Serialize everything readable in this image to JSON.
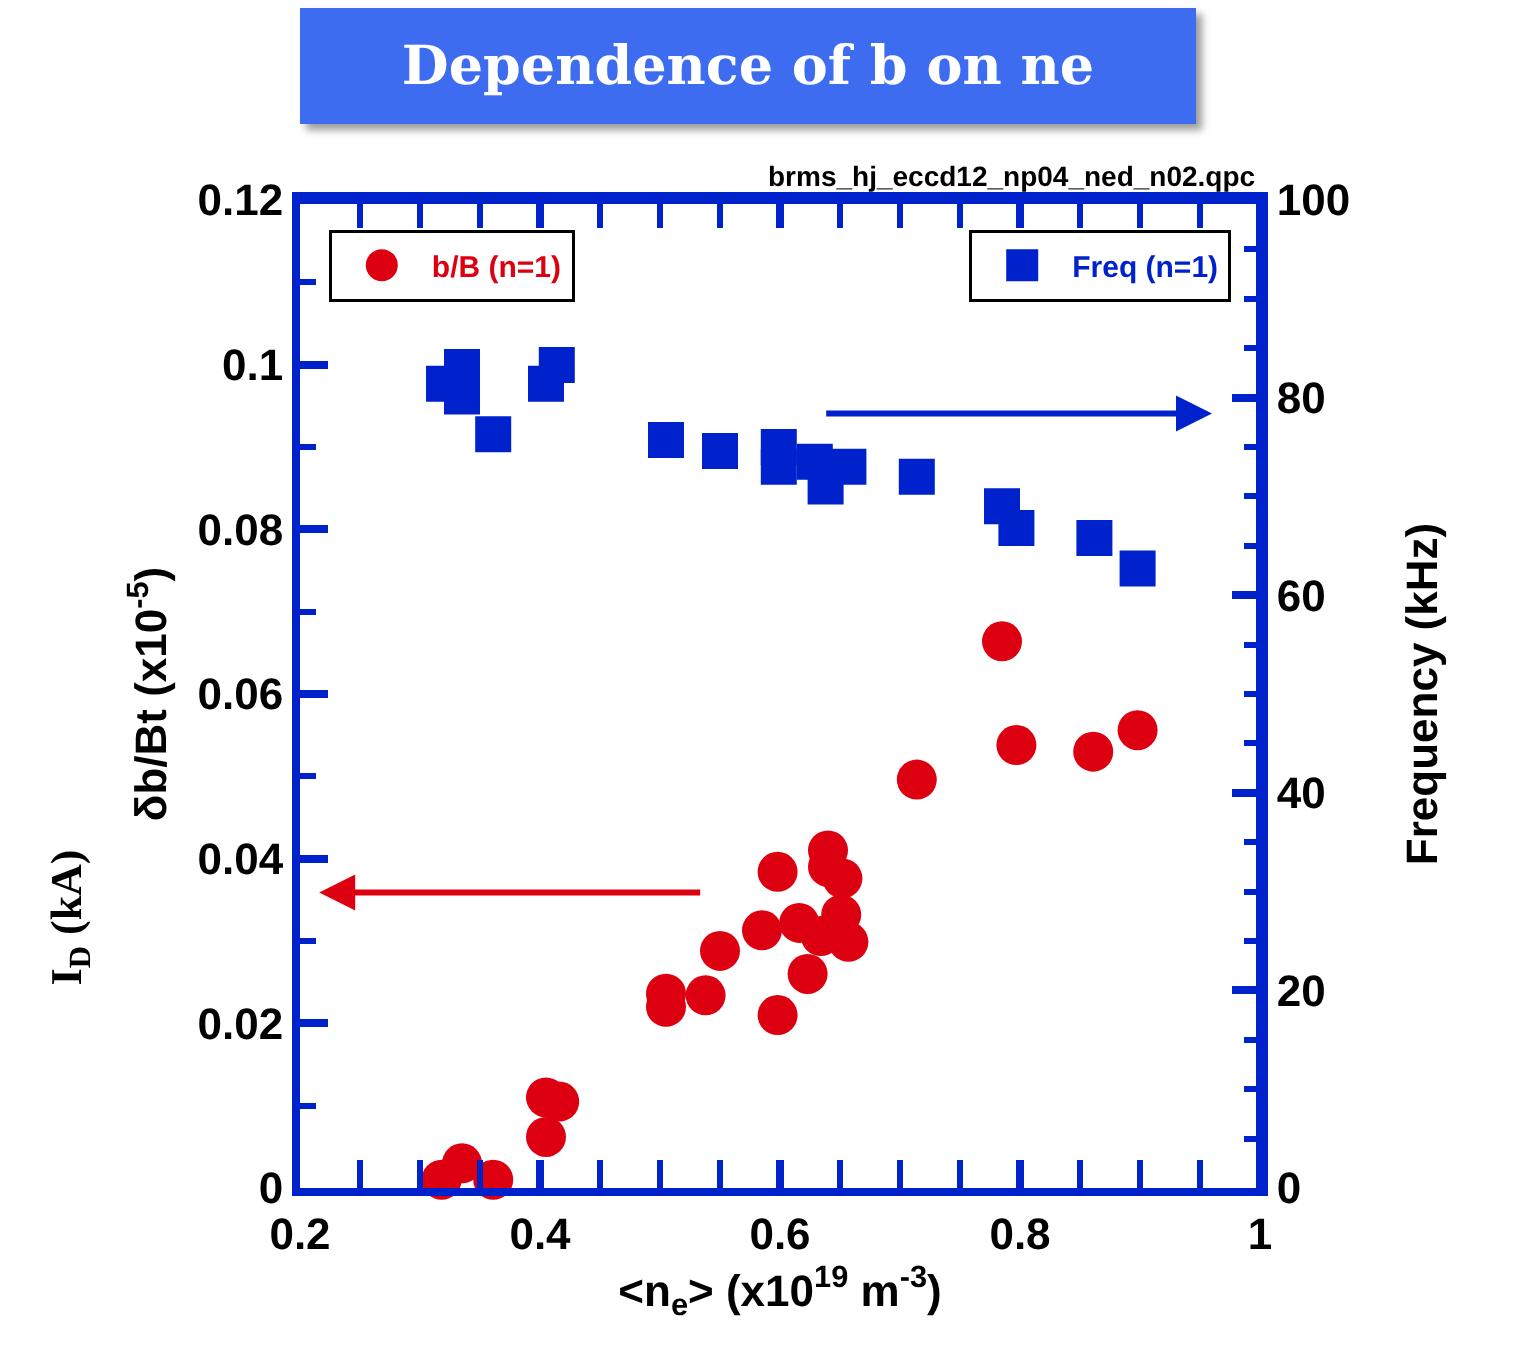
{
  "chart_data": {
    "type": "scatter",
    "title": "Dependence of b on ne",
    "xlabel": "<n$_{e}$> (x10$^{19}$ m$^{-3}$)",
    "ylabel": "δb/Bt (x10$^{-5}$)",
    "y2label": "Frequency (kHz)",
    "annotations": [
      "brms_hj_eccd12_np04_ned_n02.qpc",
      "I$_{D}$ (kA)"
    ],
    "xlim": [
      0.2,
      1
    ],
    "xticks": [
      0.2,
      0.4,
      0.6,
      0.8,
      1
    ],
    "ylim": [
      0,
      0.12
    ],
    "yticks": [
      0,
      0.02,
      0.04,
      0.06,
      0.08,
      0.1,
      0.12
    ],
    "y2lim": [
      0,
      100
    ],
    "y2ticks": [
      0,
      20,
      40,
      60,
      80,
      100
    ],
    "grid": false,
    "legend": "top",
    "series": [
      {
        "name": "b/B (n=1)",
        "color": "#dd0011",
        "marker": "circle",
        "axis": "y",
        "x": [
          0.318,
          0.335,
          0.361,
          0.405,
          0.405,
          0.416,
          0.505,
          0.505,
          0.538,
          0.55,
          0.585,
          0.598,
          0.598,
          0.616,
          0.623,
          0.634,
          0.64,
          0.64,
          0.652,
          0.651,
          0.657,
          0.714,
          0.785,
          0.797,
          0.861,
          0.898
        ],
        "values": [
          0.001,
          0.003,
          0.001,
          0.0062,
          0.011,
          0.0105,
          0.0236,
          0.022,
          0.0234,
          0.0288,
          0.0313,
          0.0384,
          0.021,
          0.0322,
          0.026,
          0.0306,
          0.041,
          0.039,
          0.0376,
          0.0332,
          0.0299,
          0.0496,
          0.0664,
          0.0538,
          0.053,
          0.0556
        ]
      },
      {
        "name": "Freq (n=1)",
        "color": "#0022cc",
        "marker": "square",
        "axis": "y2",
        "x": [
          0.32,
          0.335,
          0.335,
          0.361,
          0.405,
          0.414,
          0.505,
          0.55,
          0.599,
          0.599,
          0.629,
          0.638,
          0.657,
          0.714,
          0.785,
          0.797,
          0.862,
          0.898
        ],
        "values": [
          81.4,
          83.1,
          80.1,
          76.3,
          81.4,
          83.3,
          75.7,
          74.6,
          75,
          73,
          73.5,
          71,
          73,
          72,
          69,
          66.8,
          65.8,
          62.7
        ]
      }
    ]
  }
}
